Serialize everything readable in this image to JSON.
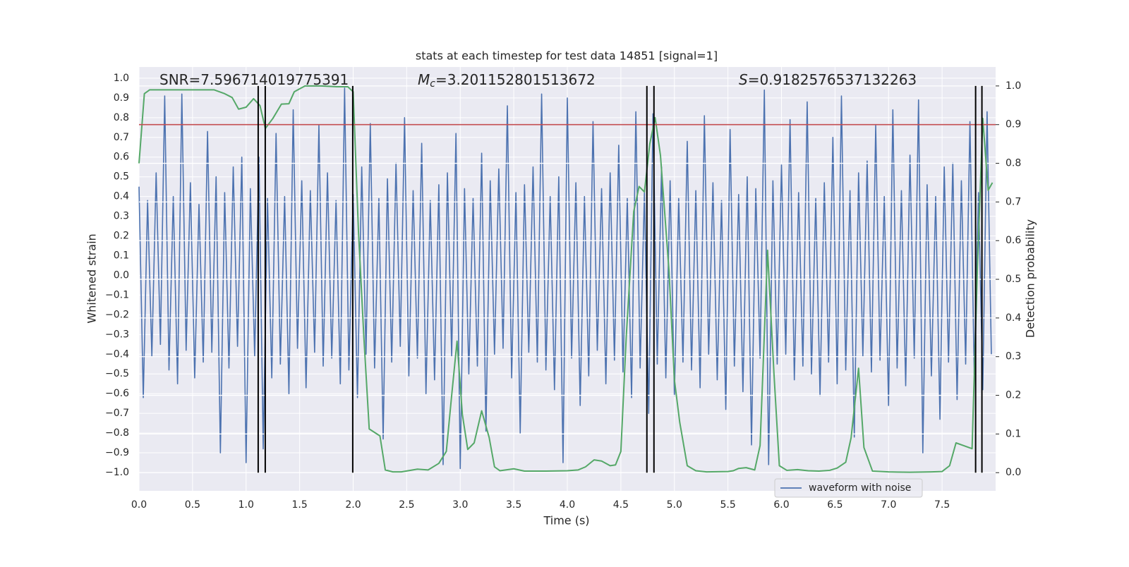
{
  "chart_data": {
    "type": "line",
    "title": "stats at each timestep for test data 14851 [signal=1]",
    "xlabel": "Time (s)",
    "ylabel": "Whitened strain",
    "y2label": "Detection probability",
    "xlim": [
      0,
      8
    ],
    "ylim": [
      -1.093,
      1.057
    ],
    "y2lim": [
      -0.047,
      1.049
    ],
    "xticks": [
      {
        "value": 0,
        "label": "0.0"
      },
      0.5,
      {
        "value": 1,
        "label": "1.0"
      },
      1.5,
      {
        "value": 2,
        "label": "2.0"
      },
      2.5,
      {
        "value": 3,
        "label": "3.0"
      },
      3.5,
      {
        "value": 4,
        "label": "4.0"
      },
      4.5,
      {
        "value": 5,
        "label": "5.0"
      },
      5.5,
      {
        "value": 6,
        "label": "6.0"
      },
      6.5,
      {
        "value": 7,
        "label": "7.0"
      },
      7.5
    ],
    "yticks": [
      {
        "value": -1,
        "label": "−1.0"
      },
      {
        "value": -0.9,
        "label": "−0.9"
      },
      {
        "value": -0.8,
        "label": "−0.8"
      },
      {
        "value": -0.7,
        "label": "−0.7"
      },
      {
        "value": -0.6,
        "label": "−0.6"
      },
      {
        "value": -0.5,
        "label": "−0.5"
      },
      {
        "value": -0.4,
        "label": "−0.4"
      },
      {
        "value": -0.3,
        "label": "−0.3"
      },
      {
        "value": -0.2,
        "label": "−0.2"
      },
      {
        "value": -0.1,
        "label": "−0.1"
      },
      {
        "value": 0,
        "label": "0.0"
      },
      0.1,
      0.2,
      0.3,
      0.4,
      0.5,
      0.6,
      0.7,
      0.8,
      0.9,
      {
        "value": 1,
        "label": "1.0"
      }
    ],
    "y2ticks": [
      {
        "value": 0,
        "label": "0.0"
      },
      0.1,
      0.2,
      0.3,
      0.4,
      0.5,
      0.6,
      0.7,
      0.8,
      0.9,
      {
        "value": 1,
        "label": "1.0"
      }
    ],
    "grid": true,
    "legend": "lower right",
    "annotations": [
      {
        "text": "SNR=7.596714019775391"
      },
      {
        "symbol": "M",
        "sub": "c",
        "text": "=3.201152801513672"
      },
      {
        "symbol": "S",
        "text": "=0.9182576537132263"
      }
    ],
    "hline": {
      "value": 0.9,
      "axis": "y2",
      "color": "#c44e52"
    },
    "vlines": {
      "x": [
        1.113,
        1.179,
        1.996,
        4.743,
        4.809,
        7.813,
        7.872
      ],
      "ymin": 0,
      "ymax": 1,
      "axis": "y2",
      "color": "#000000"
    },
    "series": [
      {
        "name": "waveform with noise",
        "color": "#4c72b0",
        "x": [
          0,
          0.04,
          0.08,
          0.12,
          0.16,
          0.2,
          0.24,
          0.28,
          0.32,
          0.36,
          0.4,
          0.44,
          0.48,
          0.52,
          0.56,
          0.6,
          0.64,
          0.68,
          0.72,
          0.76,
          0.8,
          0.84,
          0.88,
          0.92,
          0.96,
          1,
          1.04,
          1.08,
          1.12,
          1.16,
          1.2,
          1.24,
          1.28,
          1.32,
          1.36,
          1.4,
          1.44,
          1.48,
          1.52,
          1.56,
          1.6,
          1.64,
          1.68,
          1.72,
          1.76,
          1.8,
          1.84,
          1.88,
          1.92,
          1.96,
          2,
          2.04,
          2.08,
          2.12,
          2.16,
          2.2,
          2.24,
          2.28,
          2.32,
          2.36,
          2.4,
          2.44,
          2.48,
          2.52,
          2.56,
          2.6,
          2.64,
          2.68,
          2.72,
          2.76,
          2.8,
          2.84,
          2.88,
          2.92,
          2.96,
          3,
          3.04,
          3.08,
          3.12,
          3.16,
          3.2,
          3.24,
          3.28,
          3.32,
          3.36,
          3.4,
          3.44,
          3.48,
          3.52,
          3.56,
          3.6,
          3.64,
          3.68,
          3.72,
          3.76,
          3.8,
          3.84,
          3.88,
          3.92,
          3.96,
          4,
          4.04,
          4.08,
          4.12,
          4.16,
          4.2,
          4.24,
          4.28,
          4.32,
          4.36,
          4.4,
          4.44,
          4.48,
          4.52,
          4.56,
          4.6,
          4.64,
          4.68,
          4.72,
          4.76,
          4.8,
          4.84,
          4.88,
          4.92,
          4.96,
          5,
          5.04,
          5.08,
          5.12,
          5.16,
          5.2,
          5.24,
          5.28,
          5.32,
          5.36,
          5.4,
          5.44,
          5.48,
          5.52,
          5.56,
          5.6,
          5.64,
          5.68,
          5.72,
          5.76,
          5.8,
          5.84,
          5.88,
          5.92,
          5.96,
          6,
          6.04,
          6.08,
          6.12,
          6.16,
          6.2,
          6.24,
          6.28,
          6.32,
          6.36,
          6.4,
          6.44,
          6.48,
          6.52,
          6.56,
          6.6,
          6.64,
          6.68,
          6.72,
          6.76,
          6.8,
          6.84,
          6.88,
          6.92,
          6.96,
          7,
          7.04,
          7.08,
          7.12,
          7.16,
          7.2,
          7.24,
          7.28,
          7.32,
          7.36,
          7.4,
          7.44,
          7.48,
          7.52,
          7.56,
          7.6,
          7.64,
          7.68,
          7.72,
          7.76,
          7.8,
          7.84,
          7.88,
          7.92,
          7.96
        ],
        "values": [
          0.45,
          -0.62,
          0.38,
          -0.41,
          0.52,
          -0.35,
          0.91,
          -0.48,
          0.4,
          -0.55,
          0.92,
          -0.38,
          0.47,
          -0.52,
          0.36,
          -0.44,
          0.73,
          -0.39,
          0.5,
          -0.9,
          0.42,
          -0.47,
          0.55,
          -0.36,
          0.6,
          -0.95,
          0.44,
          -0.41,
          0.6,
          -0.88,
          0.39,
          -0.52,
          0.72,
          -0.45,
          0.4,
          -0.6,
          0.84,
          -0.37,
          0.48,
          -0.57,
          0.43,
          -0.39,
          0.76,
          -0.46,
          0.52,
          -0.42,
          0.38,
          -0.55,
          0.95,
          -0.48,
          0.41,
          -0.62,
          0.55,
          -0.4,
          0.77,
          -0.47,
          0.39,
          -0.83,
          0.49,
          -0.44,
          0.57,
          -0.36,
          0.8,
          -0.51,
          0.43,
          -0.42,
          0.67,
          -0.6,
          0.38,
          -0.53,
          0.46,
          -0.96,
          0.52,
          -0.41,
          0.72,
          -0.98,
          0.44,
          -0.5,
          0.39,
          -0.46,
          0.62,
          -0.79,
          0.48,
          -0.4,
          0.54,
          -0.37,
          0.86,
          -0.52,
          0.42,
          -0.8,
          0.46,
          -0.39,
          0.55,
          -0.44,
          0.92,
          -0.48,
          0.4,
          -0.58,
          0.5,
          -0.95,
          0.9,
          -0.42,
          0.47,
          -0.66,
          0.4,
          -0.51,
          0.78,
          -0.38,
          0.44,
          -0.55,
          0.52,
          -0.43,
          0.66,
          -0.49,
          0.39,
          -0.62,
          0.83,
          -0.47,
          0.42,
          -0.7,
          0.82,
          -0.45,
          0.55,
          -0.52,
          0.48,
          -0.61,
          0.39,
          -0.44,
          0.68,
          -0.48,
          0.43,
          -0.57,
          0.81,
          -0.4,
          0.47,
          -0.53,
          0.38,
          -0.68,
          0.74,
          -0.46,
          0.41,
          -0.59,
          0.5,
          -0.86,
          0.44,
          -0.42,
          0.94,
          -0.96,
          0.48,
          -0.45,
          0.56,
          -0.4,
          0.79,
          -0.53,
          0.42,
          -0.46,
          0.88,
          -0.5,
          0.39,
          -0.61,
          0.47,
          -0.44,
          0.7,
          -0.55,
          0.91,
          -0.48,
          0.43,
          -0.82,
          0.52,
          -0.41,
          0.58,
          -0.49,
          0.76,
          -0.43,
          0.4,
          -0.66,
          0.84,
          -0.47,
          0.43,
          -0.56,
          0.61,
          -0.42,
          0.89,
          -0.9,
          0.46,
          -0.51,
          0.4,
          -0.73,
          0.55,
          -0.44,
          0.57,
          -0.63,
          0.48,
          -0.45,
          0.78,
          -0.5,
          0.42,
          -0.58,
          0.83,
          -0.4
        ]
      },
      {
        "color": "#55a868",
        "axis": "y2",
        "x": [
          0,
          0.05,
          0.1,
          0.2,
          0.3,
          0.4,
          0.5,
          0.6,
          0.7,
          0.8,
          0.87,
          0.93,
          1.0,
          1.07,
          1.13,
          1.18,
          1.25,
          1.33,
          1.4,
          1.45,
          1.55,
          1.7,
          1.85,
          1.95,
          2.0,
          2.05,
          2.1,
          2.15,
          2.25,
          2.3,
          2.37,
          2.45,
          2.6,
          2.7,
          2.8,
          2.87,
          2.92,
          2.97,
          3.02,
          3.07,
          3.13,
          3.2,
          3.27,
          3.32,
          3.37,
          3.5,
          3.6,
          3.8,
          4.0,
          4.1,
          4.17,
          4.25,
          4.32,
          4.4,
          4.45,
          4.5,
          4.55,
          4.62,
          4.67,
          4.72,
          4.77,
          4.82,
          4.87,
          4.95,
          5.0,
          5.05,
          5.12,
          5.2,
          5.3,
          5.5,
          5.55,
          5.6,
          5.67,
          5.75,
          5.8,
          5.87,
          5.93,
          5.98,
          6.05,
          6.15,
          6.25,
          6.35,
          6.45,
          6.52,
          6.6,
          6.65,
          6.72,
          6.77,
          6.85,
          7.0,
          7.2,
          7.4,
          7.5,
          7.57,
          7.63,
          7.7,
          7.78,
          7.83,
          7.88,
          7.93,
          7.97
        ],
        "values": [
          0.8,
          0.98,
          0.99,
          0.99,
          0.99,
          0.99,
          0.99,
          0.99,
          0.99,
          0.98,
          0.97,
          0.94,
          0.945,
          0.967,
          0.949,
          0.89,
          0.916,
          0.953,
          0.954,
          0.985,
          1.0,
          1.0,
          0.998,
          0.998,
          0.985,
          0.62,
          0.35,
          0.113,
          0.095,
          0.007,
          0.002,
          0.002,
          0.009,
          0.007,
          0.024,
          0.055,
          0.2,
          0.34,
          0.15,
          0.06,
          0.077,
          0.16,
          0.091,
          0.015,
          0.005,
          0.01,
          0.004,
          0.004,
          0.005,
          0.007,
          0.015,
          0.033,
          0.03,
          0.018,
          0.02,
          0.055,
          0.35,
          0.675,
          0.74,
          0.726,
          0.85,
          0.918,
          0.82,
          0.52,
          0.24,
          0.13,
          0.018,
          0.005,
          0.002,
          0.003,
          0.005,
          0.011,
          0.013,
          0.007,
          0.07,
          0.575,
          0.255,
          0.018,
          0.006,
          0.008,
          0.005,
          0.004,
          0.006,
          0.012,
          0.027,
          0.09,
          0.27,
          0.065,
          0.004,
          0.002,
          0.001,
          0.002,
          0.003,
          0.018,
          0.077,
          0.07,
          0.062,
          0.53,
          0.916,
          0.73,
          0.75
        ]
      }
    ]
  }
}
